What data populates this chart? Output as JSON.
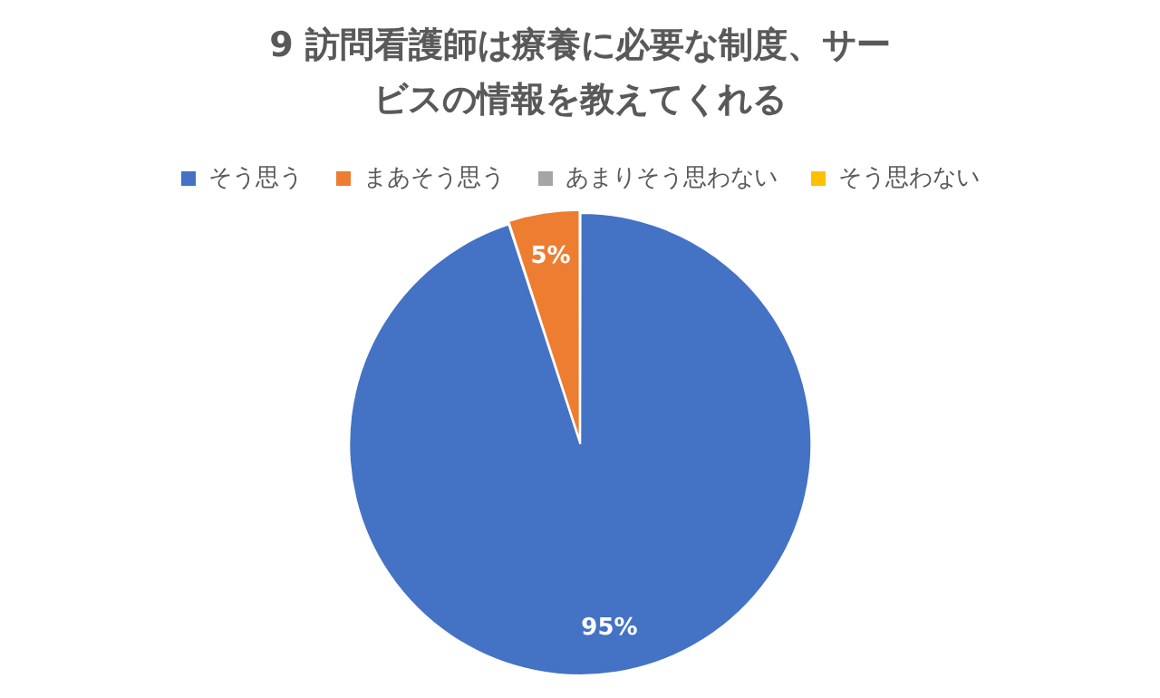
{
  "chart_data": {
    "type": "pie",
    "title": "9 訪問看護師は療養に必要な制度、サービスの情報を教えてくれる",
    "categories": [
      "そう思う",
      "まあそう思う",
      "あまりそう思わない",
      "そう思わない"
    ],
    "values": [
      95,
      5,
      0,
      0
    ],
    "colors": [
      "#4472c4",
      "#ed7d31",
      "#a5a5a5",
      "#ffc000"
    ],
    "value_labels": [
      "95%",
      "5%",
      null,
      null
    ],
    "legend": "top"
  }
}
